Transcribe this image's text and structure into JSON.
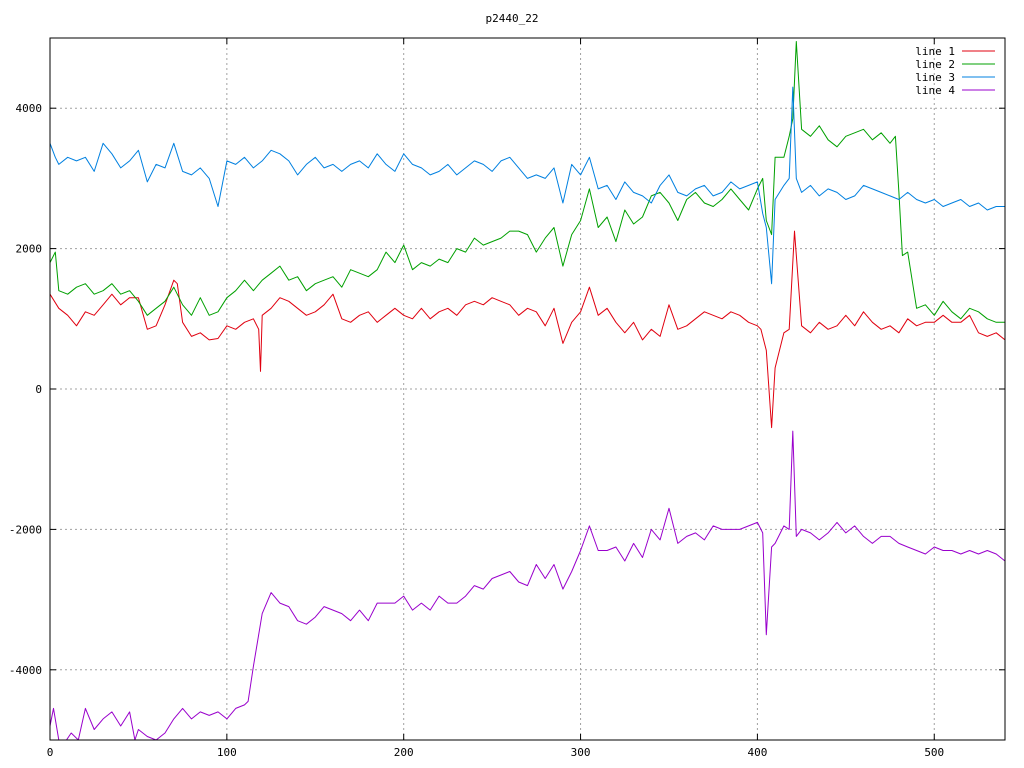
{
  "chart_data": {
    "type": "line",
    "title": "p2440_22",
    "xlabel": "",
    "ylabel": "",
    "xlim": [
      0,
      540
    ],
    "ylim": [
      -5000,
      5000
    ],
    "x_ticks": [
      0,
      100,
      200,
      300,
      400,
      500
    ],
    "y_ticks": [
      -4000,
      -2000,
      0,
      2000,
      4000
    ],
    "grid": true,
    "legend_position": "top-right",
    "series": [
      {
        "name": "line 1",
        "color": "#e0000f",
        "x": [
          0,
          5,
          10,
          15,
          20,
          25,
          30,
          35,
          40,
          45,
          50,
          55,
          60,
          65,
          70,
          72,
          75,
          80,
          85,
          90,
          95,
          100,
          105,
          110,
          115,
          118,
          119,
          120,
          125,
          130,
          135,
          140,
          145,
          150,
          155,
          160,
          165,
          170,
          175,
          180,
          185,
          190,
          195,
          200,
          205,
          210,
          215,
          220,
          225,
          230,
          235,
          240,
          245,
          250,
          255,
          260,
          265,
          270,
          275,
          280,
          285,
          290,
          295,
          300,
          305,
          310,
          315,
          320,
          325,
          330,
          335,
          340,
          345,
          350,
          355,
          360,
          365,
          370,
          375,
          380,
          385,
          390,
          395,
          400,
          402,
          405,
          408,
          410,
          415,
          418,
          421,
          425,
          430,
          435,
          440,
          445,
          450,
          455,
          460,
          465,
          470,
          475,
          480,
          485,
          490,
          495,
          500,
          505,
          510,
          515,
          520,
          525,
          530,
          535,
          540
        ],
        "y": [
          1350,
          1150,
          1050,
          900,
          1100,
          1050,
          1200,
          1350,
          1200,
          1300,
          1300,
          850,
          900,
          1200,
          1550,
          1500,
          950,
          750,
          800,
          700,
          720,
          900,
          850,
          950,
          1000,
          850,
          250,
          1050,
          1150,
          1300,
          1250,
          1150,
          1050,
          1100,
          1200,
          1350,
          1000,
          950,
          1050,
          1100,
          950,
          1050,
          1150,
          1050,
          1000,
          1150,
          1000,
          1100,
          1150,
          1050,
          1200,
          1250,
          1200,
          1300,
          1250,
          1200,
          1050,
          1150,
          1100,
          900,
          1150,
          650,
          950,
          1100,
          1450,
          1050,
          1150,
          950,
          800,
          950,
          700,
          850,
          750,
          1200,
          850,
          900,
          1000,
          1100,
          1050,
          1000,
          1100,
          1050,
          950,
          900,
          850,
          550,
          -550,
          300,
          800,
          850,
          2250,
          900,
          800,
          950,
          850,
          900,
          1050,
          900,
          1100,
          950,
          850,
          900,
          800,
          1000,
          900,
          950,
          950,
          1050,
          950,
          950,
          1050,
          800,
          750,
          800,
          700
        ]
      },
      {
        "name": "line 2",
        "color": "#00a000",
        "x": [
          0,
          3,
          5,
          10,
          15,
          20,
          25,
          30,
          35,
          40,
          45,
          50,
          55,
          60,
          65,
          70,
          75,
          80,
          85,
          90,
          95,
          100,
          105,
          110,
          115,
          120,
          125,
          130,
          135,
          140,
          145,
          150,
          155,
          160,
          165,
          170,
          175,
          180,
          185,
          190,
          195,
          200,
          205,
          210,
          215,
          220,
          225,
          230,
          235,
          240,
          245,
          250,
          255,
          260,
          265,
          270,
          275,
          280,
          285,
          290,
          295,
          300,
          305,
          310,
          315,
          320,
          325,
          330,
          335,
          340,
          345,
          350,
          355,
          360,
          365,
          370,
          375,
          380,
          385,
          390,
          395,
          400,
          403,
          405,
          408,
          410,
          415,
          418,
          420,
          422,
          425,
          430,
          435,
          440,
          445,
          450,
          455,
          460,
          465,
          470,
          475,
          478,
          480,
          482,
          485,
          490,
          495,
          500,
          505,
          510,
          515,
          520,
          525,
          530,
          535,
          540
        ],
        "y": [
          1800,
          1950,
          1400,
          1350,
          1450,
          1500,
          1350,
          1400,
          1500,
          1350,
          1400,
          1250,
          1050,
          1150,
          1250,
          1450,
          1200,
          1050,
          1300,
          1050,
          1100,
          1300,
          1400,
          1550,
          1400,
          1550,
          1650,
          1750,
          1550,
          1600,
          1400,
          1500,
          1550,
          1600,
          1450,
          1700,
          1650,
          1600,
          1700,
          1950,
          1800,
          2050,
          1700,
          1800,
          1750,
          1850,
          1800,
          2000,
          1950,
          2150,
          2050,
          2100,
          2150,
          2250,
          2250,
          2200,
          1950,
          2150,
          2300,
          1750,
          2200,
          2400,
          2850,
          2300,
          2450,
          2100,
          2550,
          2350,
          2450,
          2750,
          2800,
          2650,
          2400,
          2700,
          2800,
          2650,
          2600,
          2700,
          2850,
          2700,
          2550,
          2850,
          3000,
          2400,
          2200,
          3300,
          3300,
          3600,
          3850,
          4950,
          3700,
          3600,
          3750,
          3550,
          3450,
          3600,
          3650,
          3700,
          3550,
          3650,
          3500,
          3600,
          2800,
          1900,
          1950,
          1150,
          1200,
          1050,
          1250,
          1100,
          1000,
          1150,
          1100,
          1000,
          950,
          950
        ]
      },
      {
        "name": "line 3",
        "color": "#0080e0",
        "x": [
          0,
          3,
          5,
          10,
          15,
          20,
          25,
          30,
          35,
          40,
          45,
          50,
          55,
          60,
          65,
          70,
          75,
          80,
          85,
          90,
          95,
          100,
          105,
          110,
          115,
          120,
          125,
          130,
          135,
          140,
          145,
          150,
          155,
          160,
          165,
          170,
          175,
          180,
          185,
          190,
          195,
          200,
          205,
          210,
          215,
          220,
          225,
          230,
          235,
          240,
          245,
          250,
          255,
          260,
          265,
          270,
          275,
          280,
          285,
          290,
          295,
          300,
          305,
          310,
          315,
          320,
          325,
          330,
          335,
          340,
          345,
          350,
          355,
          360,
          365,
          370,
          375,
          380,
          385,
          390,
          395,
          400,
          403,
          405,
          408,
          410,
          415,
          418,
          420,
          422,
          425,
          430,
          435,
          440,
          445,
          450,
          455,
          460,
          465,
          470,
          475,
          480,
          485,
          490,
          495,
          500,
          505,
          510,
          515,
          520,
          525,
          530,
          535,
          540
        ],
        "y": [
          3500,
          3300,
          3200,
          3300,
          3250,
          3300,
          3100,
          3500,
          3350,
          3150,
          3250,
          3400,
          2950,
          3200,
          3150,
          3500,
          3100,
          3050,
          3150,
          3000,
          2600,
          3250,
          3200,
          3300,
          3150,
          3250,
          3400,
          3350,
          3250,
          3050,
          3200,
          3300,
          3150,
          3200,
          3100,
          3200,
          3250,
          3150,
          3350,
          3200,
          3100,
          3350,
          3200,
          3150,
          3050,
          3100,
          3200,
          3050,
          3150,
          3250,
          3200,
          3100,
          3250,
          3300,
          3150,
          3000,
          3050,
          3000,
          3150,
          2650,
          3200,
          3050,
          3300,
          2850,
          2900,
          2700,
          2950,
          2800,
          2750,
          2650,
          2900,
          3050,
          2800,
          2750,
          2850,
          2900,
          2750,
          2800,
          2950,
          2850,
          2900,
          2950,
          2500,
          2300,
          1500,
          2700,
          2900,
          3000,
          4300,
          3000,
          2800,
          2900,
          2750,
          2850,
          2800,
          2700,
          2750,
          2900,
          2850,
          2800,
          2750,
          2700,
          2800,
          2700,
          2650,
          2700,
          2600,
          2650,
          2700,
          2600,
          2650,
          2550,
          2600,
          2600
        ]
      },
      {
        "name": "line 4",
        "color": "#9900cc",
        "x": [
          0,
          2,
          5,
          8,
          12,
          16,
          20,
          25,
          30,
          35,
          40,
          45,
          48,
          50,
          55,
          60,
          65,
          70,
          75,
          80,
          85,
          90,
          95,
          100,
          105,
          110,
          112,
          115,
          120,
          125,
          130,
          135,
          140,
          145,
          150,
          155,
          160,
          165,
          170,
          175,
          180,
          185,
          190,
          195,
          200,
          205,
          210,
          215,
          220,
          225,
          230,
          235,
          240,
          245,
          250,
          255,
          260,
          265,
          270,
          275,
          280,
          285,
          290,
          295,
          300,
          305,
          310,
          315,
          320,
          325,
          330,
          335,
          340,
          345,
          350,
          355,
          360,
          365,
          370,
          375,
          380,
          385,
          390,
          395,
          400,
          403,
          405,
          408,
          410,
          415,
          418,
          420,
          422,
          425,
          430,
          435,
          440,
          445,
          450,
          455,
          460,
          465,
          470,
          475,
          480,
          485,
          490,
          495,
          500,
          505,
          510,
          515,
          520,
          525,
          530,
          535,
          540
        ],
        "y": [
          -4800,
          -4550,
          -5000,
          -5050,
          -4900,
          -5000,
          -4550,
          -4850,
          -4700,
          -4600,
          -4800,
          -4600,
          -5000,
          -4850,
          -4950,
          -5000,
          -4900,
          -4700,
          -4550,
          -4700,
          -4600,
          -4650,
          -4600,
          -4700,
          -4550,
          -4500,
          -4450,
          -3950,
          -3200,
          -2900,
          -3050,
          -3100,
          -3300,
          -3350,
          -3250,
          -3100,
          -3150,
          -3200,
          -3300,
          -3150,
          -3300,
          -3050,
          -3050,
          -3050,
          -2950,
          -3150,
          -3050,
          -3150,
          -2950,
          -3050,
          -3050,
          -2950,
          -2800,
          -2850,
          -2700,
          -2650,
          -2600,
          -2750,
          -2800,
          -2500,
          -2700,
          -2500,
          -2850,
          -2600,
          -2300,
          -1950,
          -2300,
          -2300,
          -2250,
          -2450,
          -2200,
          -2400,
          -2000,
          -2150,
          -1700,
          -2200,
          -2100,
          -2050,
          -2150,
          -1950,
          -2000,
          -2000,
          -2000,
          -1950,
          -1900,
          -2050,
          -3500,
          -2250,
          -2200,
          -1950,
          -2000,
          -600,
          -2100,
          -2000,
          -2050,
          -2150,
          -2050,
          -1900,
          -2050,
          -1950,
          -2100,
          -2200,
          -2100,
          -2100,
          -2200,
          -2250,
          -2300,
          -2350,
          -2250,
          -2300,
          -2300,
          -2350,
          -2300,
          -2350,
          -2300,
          -2350,
          -2450
        ]
      }
    ]
  }
}
